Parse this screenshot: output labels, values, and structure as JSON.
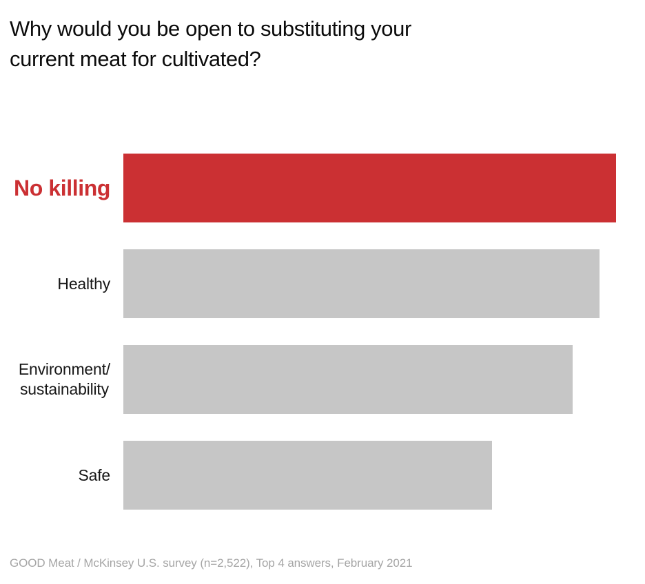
{
  "header": {
    "title_display": "Why would you be open to substituting your\ncurrent meat for cultivated?"
  },
  "chart_data": {
    "type": "bar",
    "orientation": "horizontal",
    "title": "Why would you be open to substituting your current meat for cultivated?",
    "categories": [
      "No killing",
      "Healthy",
      "Environment/sustainability",
      "Safe"
    ],
    "values": [
      100,
      96.6,
      91.2,
      74.8
    ],
    "unit": "relative bar length, % of longest bar (no numeric axis shown in chart)",
    "xlim": [
      0,
      100
    ],
    "grid": false,
    "legend": false,
    "highlight_index": 0,
    "series": [
      {
        "label": "No killing",
        "label_display": "No killing",
        "value": 100,
        "highlighted": true
      },
      {
        "label": "Healthy",
        "label_display": "Healthy",
        "value": 96.6,
        "highlighted": false
      },
      {
        "label": "Environment/sustainability",
        "label_display": "Environment/\nsustainability",
        "value": 91.2,
        "highlighted": false
      },
      {
        "label": "Safe",
        "label_display": "Safe",
        "value": 74.8,
        "highlighted": false
      }
    ]
  },
  "footer": {
    "source": "GOOD Meat / McKinsey U.S. survey (n=2,522), Top 4 answers, February 2021"
  },
  "colors": {
    "accent_red": "#cb3033",
    "bar_gray": "#c6c6c6",
    "title_text": "#0b0b0b",
    "label_text": "#161616",
    "footer_text": "#a5a5a5",
    "background": "#ffffff"
  }
}
